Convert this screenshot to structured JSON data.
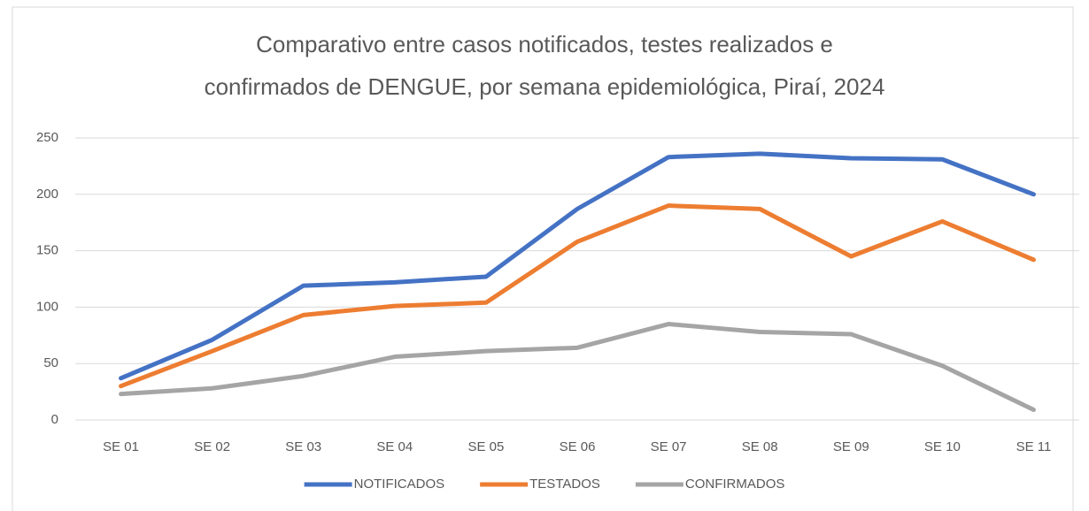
{
  "chart_data": {
    "type": "line",
    "title": [
      "Comparativo entre casos notificados, testes realizados e",
      "confirmados de DENGUE, por semana epidemiológica, Piraí, 2024"
    ],
    "categories": [
      "SE 01",
      "SE 02",
      "SE 03",
      "SE 04",
      "SE 05",
      "SE 06",
      "SE 07",
      "SE 08",
      "SE 09",
      "SE 10",
      "SE 11"
    ],
    "series": [
      {
        "name": "NOTIFICADOS",
        "color": "#4472c4",
        "values": [
          37,
          71,
          119,
          122,
          127,
          187,
          233,
          236,
          232,
          231,
          200
        ]
      },
      {
        "name": "TESTADOS",
        "color": "#ed7d31",
        "values": [
          30,
          61,
          93,
          101,
          104,
          158,
          190,
          187,
          145,
          176,
          142
        ]
      },
      {
        "name": "CONFIRMADOS",
        "color": "#a5a5a5",
        "values": [
          23,
          28,
          39,
          56,
          61,
          64,
          85,
          78,
          76,
          48,
          9
        ]
      }
    ],
    "ylim": [
      0,
      250
    ],
    "yticks": [
      0,
      50,
      100,
      150,
      200,
      250
    ],
    "grid": true,
    "legend": "bottom"
  }
}
